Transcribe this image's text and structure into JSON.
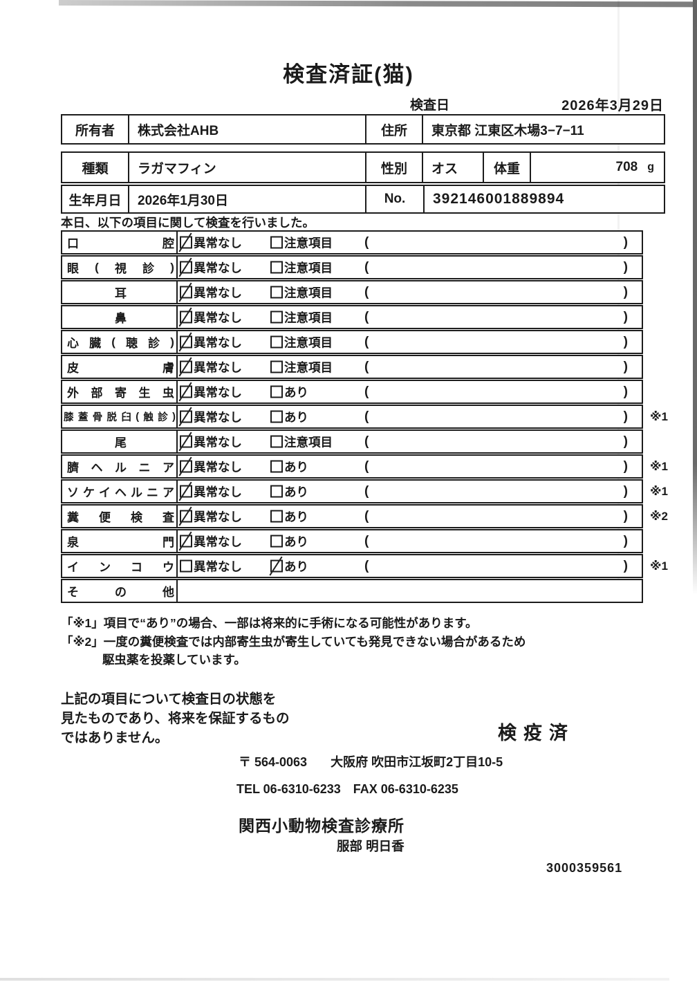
{
  "page": {
    "title": "検査済証(猫)",
    "inspection_date_label": "検査日",
    "inspection_date": "2026年3月29日"
  },
  "owner_table": {
    "owner_label": "所有者",
    "owner": "株式会社AHB",
    "address_label": "住所",
    "address": "東京都 江東区木場3−7−11"
  },
  "animal_table": {
    "breed_label": "種類",
    "breed": "ラガマフィン",
    "sex_label": "性別",
    "sex": "オス",
    "weight_label": "体重",
    "weight": "708",
    "weight_unit": "g",
    "birth_label": "生年月日",
    "birth": "2026年1月30日",
    "no_label": "No.",
    "no": "392146001889894"
  },
  "exam": {
    "intro": "本日、以下の項目に関して検査を行いました。",
    "paren_open": "(",
    "paren_close": ")",
    "rows": [
      {
        "label": "口腔",
        "opt1": "異常なし",
        "opt1_checked": true,
        "opt2": "注意項目",
        "opt2_checked": false,
        "note": ""
      },
      {
        "label": "眼(視診)",
        "opt1": "異常なし",
        "opt1_checked": true,
        "opt2": "注意項目",
        "opt2_checked": false,
        "note": ""
      },
      {
        "label": "耳",
        "opt1": "異常なし",
        "opt1_checked": true,
        "opt2": "注意項目",
        "opt2_checked": false,
        "note": ""
      },
      {
        "label": "鼻",
        "opt1": "異常なし",
        "opt1_checked": true,
        "opt2": "注意項目",
        "opt2_checked": false,
        "note": ""
      },
      {
        "label": "心臓(聴診)",
        "opt1": "異常なし",
        "opt1_checked": true,
        "opt2": "注意項目",
        "opt2_checked": false,
        "note": ""
      },
      {
        "label": "皮膚",
        "opt1": "異常なし",
        "opt1_checked": true,
        "opt2": "注意項目",
        "opt2_checked": false,
        "note": ""
      },
      {
        "label": "外部寄生虫",
        "opt1": "異常なし",
        "opt1_checked": true,
        "opt2": "あり",
        "opt2_checked": false,
        "note": ""
      },
      {
        "label": "膝蓋骨脱臼(触診)",
        "opt1": "異常なし",
        "opt1_checked": true,
        "opt2": "あり",
        "opt2_checked": false,
        "note": "※1"
      },
      {
        "label": "尾",
        "opt1": "異常なし",
        "opt1_checked": true,
        "opt2": "注意項目",
        "opt2_checked": false,
        "note": ""
      },
      {
        "label": "臍ヘルニア",
        "opt1": "異常なし",
        "opt1_checked": true,
        "opt2": "あり",
        "opt2_checked": false,
        "note": "※1"
      },
      {
        "label": "ソケイヘルニア",
        "opt1": "異常なし",
        "opt1_checked": true,
        "opt2": "あり",
        "opt2_checked": false,
        "note": "※1"
      },
      {
        "label": "糞便検査",
        "opt1": "異常なし",
        "opt1_checked": true,
        "opt2": "あり",
        "opt2_checked": false,
        "note": "※2"
      },
      {
        "label": "泉門",
        "opt1": "異常なし",
        "opt1_checked": true,
        "opt2": "あり",
        "opt2_checked": false,
        "note": ""
      },
      {
        "label": "インコウ",
        "opt1": "異常なし",
        "opt1_checked": false,
        "opt2": "あり",
        "opt2_checked": true,
        "note": "※1"
      },
      {
        "label": "その他",
        "opt1": "",
        "opt1_checked": false,
        "opt2": "",
        "opt2_checked": false,
        "note": ""
      }
    ]
  },
  "notes": {
    "note1": "「※1」項目で“あり”の場合、一部は将来的に手術になる可能性があります。",
    "note2a": "「※2」一度の糞便検査では内部寄生虫が寄生していても発見できない場合があるため",
    "note2b": "駆虫薬を投薬しています。"
  },
  "footer": {
    "disclaimer_line1": "上記の項目について検査日の状態を",
    "disclaimer_line2": "見たものであり、将来を保証するもの",
    "disclaimer_line3": "ではありません。",
    "stamp": "検疫済",
    "postal": "〒 564-0063",
    "address": "大阪府 吹田市江坂町2丁目10-5",
    "tel": "TEL 06-6310-6233",
    "fax": "FAX 06-6310-6235",
    "clinic": "関西小動物検査診療所",
    "vet": "服部 明日香",
    "serial": "3000359561"
  }
}
